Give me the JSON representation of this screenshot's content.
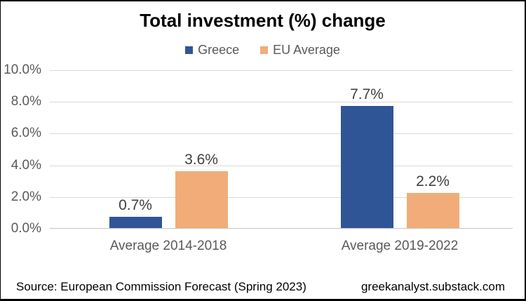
{
  "title": "Total investment (%) change",
  "footer": {
    "source": "Source: European Commission Forecast (Spring 2023)",
    "site": "greekanalyst.substack.com"
  },
  "colors": {
    "greece": "#2f5596",
    "eu_average": "#f2ac79",
    "gridline": "#d9d9d9",
    "axis_text": "#595959",
    "data_label": "#3f3f3f"
  },
  "chart_data": {
    "type": "bar",
    "categories": [
      "Average 2014-2018",
      "Average 2019-2022"
    ],
    "series": [
      {
        "name": "Greece",
        "color": "#2f5596",
        "values": [
          0.7,
          7.7
        ]
      },
      {
        "name": "EU Average",
        "color": "#f2ac79",
        "values": [
          3.6,
          2.2
        ]
      }
    ],
    "value_labels": [
      [
        "0.7%",
        "7.7%"
      ],
      [
        "3.6%",
        "2.2%"
      ]
    ],
    "y_ticks": [
      "10.0%",
      "8.0%",
      "6.0%",
      "4.0%",
      "2.0%",
      "0.0%"
    ],
    "ylim": [
      0,
      10
    ],
    "xlabel": "",
    "ylabel": "",
    "grid": true,
    "legend_position": "top"
  }
}
